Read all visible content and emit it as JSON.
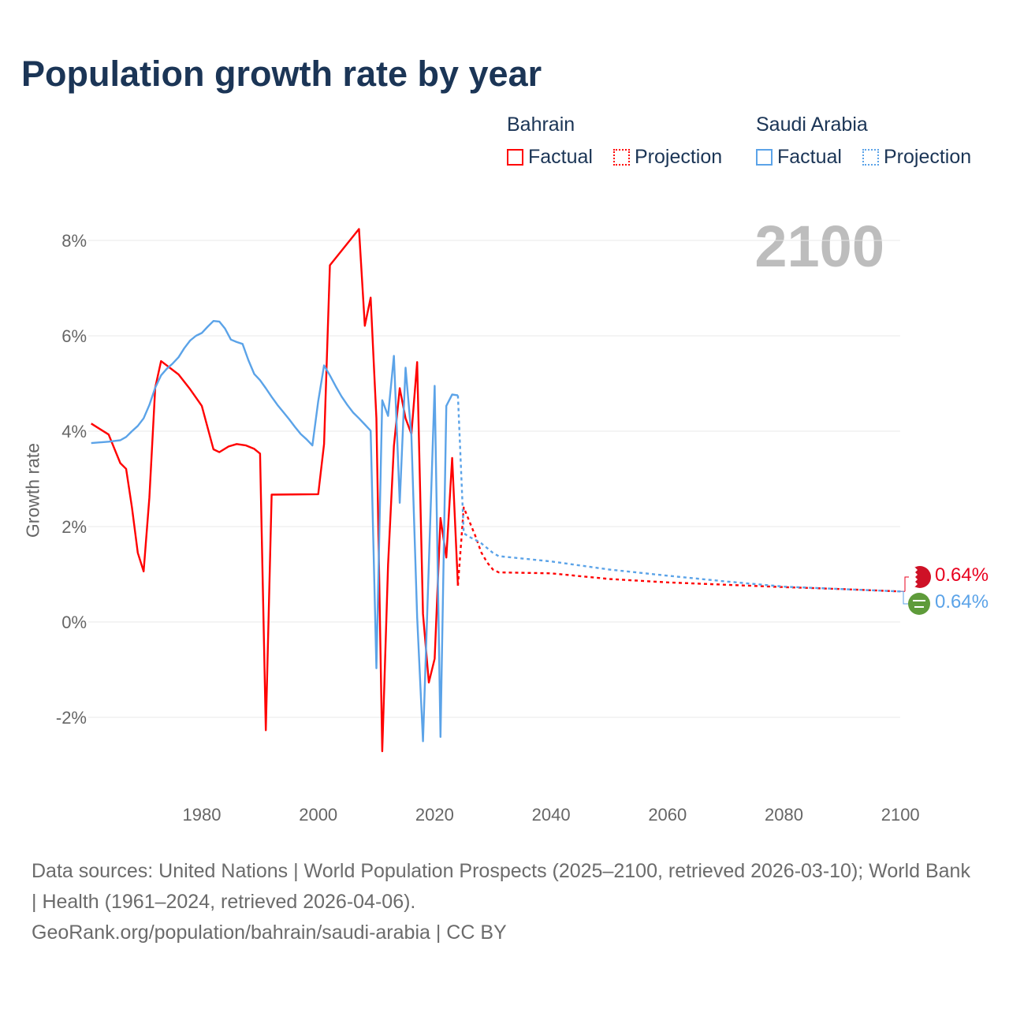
{
  "title": "Population growth rate by year",
  "current_year_label": "2100",
  "legend": [
    {
      "country": "Bahrain",
      "factual": "Factual",
      "projection": "Projection",
      "color": "#ff0000"
    },
    {
      "country": "Saudi Arabia",
      "factual": "Factual",
      "projection": "Projection",
      "color": "#5ba3e8"
    }
  ],
  "end_labels": [
    {
      "country": "Bahrain",
      "value": "0.64%",
      "color": "#e8001e",
      "icon": "bahrain-flag-icon"
    },
    {
      "country": "Saudi Arabia",
      "value": "0.64%",
      "color": "#5ba3e8",
      "icon": "saudi-arabia-flag-icon"
    }
  ],
  "footer": {
    "sources": "Data sources: United Nations | World Population Prospects (2025–2100, retrieved 2026-03-10); World Bank | Health (1961–2024, retrieved 2026-04-06).",
    "credit": "GeoRank.org/population/bahrain/saudi-arabia | CC BY"
  },
  "chart_data": {
    "type": "line",
    "title": "Population growth rate by year",
    "xlabel": "",
    "ylabel": "Growth rate",
    "xlim": [
      1961,
      2100
    ],
    "ylim": [
      -3,
      8.5
    ],
    "x_ticks": [
      1980,
      2000,
      2020,
      2040,
      2060,
      2080,
      2100
    ],
    "y_ticks": [
      -2,
      0,
      2,
      4,
      6,
      8
    ],
    "y_tick_labels": [
      "-2%",
      "0%",
      "2%",
      "4%",
      "6%",
      "8%"
    ],
    "grid": true,
    "legend_position": "top-right",
    "series": [
      {
        "name": "Bahrain Factual",
        "color": "#ff0000",
        "style": "solid",
        "x": [
          1961,
          1964,
          1966,
          1967,
          1968,
          1969,
          1970,
          1971,
          1972,
          1973,
          1976,
          1978,
          1980,
          1982,
          1983,
          1984.6,
          1986,
          1987.6,
          1989,
          1990,
          1991,
          1992,
          2000,
          2001,
          2002,
          2007,
          2008,
          2009,
          2010,
          2011,
          2012,
          2013,
          2014,
          2015,
          2016,
          2017,
          2018,
          2019,
          2020,
          2021,
          2022,
          2023,
          2024
        ],
        "y": [
          4.16,
          3.93,
          3.33,
          3.21,
          2.4,
          1.45,
          1.06,
          2.61,
          4.91,
          5.47,
          5.19,
          4.88,
          4.53,
          3.62,
          3.56,
          3.68,
          3.73,
          3.7,
          3.63,
          3.53,
          -2.27,
          2.67,
          2.68,
          3.73,
          7.48,
          8.24,
          6.21,
          6.8,
          4.27,
          -2.71,
          1.2,
          3.69,
          4.9,
          4.27,
          3.94,
          5.45,
          0.17,
          -1.27,
          -0.77,
          2.18,
          1.35,
          3.44,
          0.76
        ]
      },
      {
        "name": "Bahrain Projection",
        "color": "#ff0000",
        "style": "dotted",
        "x": [
          2024,
          2025,
          2026,
          2027,
          2028,
          2029,
          2030,
          2031,
          2040,
          2050,
          2060,
          2070,
          2080,
          2090,
          2100
        ],
        "y": [
          0.76,
          2.4,
          2.1,
          1.8,
          1.46,
          1.25,
          1.1,
          1.04,
          1.02,
          0.9,
          0.83,
          0.78,
          0.73,
          0.69,
          0.64
        ]
      },
      {
        "name": "Saudi Arabia Factual",
        "color": "#5ba3e8",
        "style": "solid",
        "x": [
          1961,
          1964,
          1966,
          1967,
          1968,
          1969,
          1970,
          1971,
          1972,
          1973,
          1974,
          1975,
          1976,
          1977,
          1978,
          1979,
          1980,
          1981,
          1982,
          1983,
          1984,
          1985,
          1986,
          1987,
          1988,
          1989,
          1990,
          1991,
          1992,
          1993,
          1994,
          1995,
          1996,
          1997,
          1998,
          1999,
          2000,
          2001,
          2002,
          2003,
          2004,
          2005,
          2006,
          2007,
          2008,
          2009,
          2010,
          2011,
          2012,
          2013,
          2014,
          2015,
          2016,
          2017,
          2018,
          2019,
          2020,
          2021,
          2022,
          2023,
          2024
        ],
        "y": [
          3.75,
          3.78,
          3.81,
          3.88,
          4.0,
          4.11,
          4.27,
          4.55,
          4.91,
          5.17,
          5.31,
          5.42,
          5.55,
          5.74,
          5.9,
          6.0,
          6.06,
          6.19,
          6.31,
          6.3,
          6.15,
          5.92,
          5.87,
          5.83,
          5.49,
          5.2,
          5.07,
          4.9,
          4.72,
          4.55,
          4.4,
          4.25,
          4.09,
          3.94,
          3.83,
          3.7,
          4.63,
          5.38,
          5.17,
          4.94,
          4.73,
          4.55,
          4.39,
          4.27,
          4.14,
          4.01,
          -0.97,
          4.65,
          4.32,
          5.58,
          2.5,
          5.33,
          3.9,
          0.1,
          -2.5,
          1.2,
          4.95,
          -2.41,
          4.53,
          4.77,
          4.75
        ]
      },
      {
        "name": "Saudi Arabia Projection",
        "color": "#5ba3e8",
        "style": "dotted",
        "x": [
          2024,
          2025,
          2026,
          2027,
          2028,
          2029,
          2030,
          2031,
          2040,
          2050,
          2060,
          2070,
          2080,
          2090,
          2100
        ],
        "y": [
          4.75,
          1.86,
          1.78,
          1.72,
          1.65,
          1.55,
          1.45,
          1.38,
          1.27,
          1.1,
          0.97,
          0.85,
          0.74,
          0.69,
          0.64
        ]
      }
    ]
  }
}
